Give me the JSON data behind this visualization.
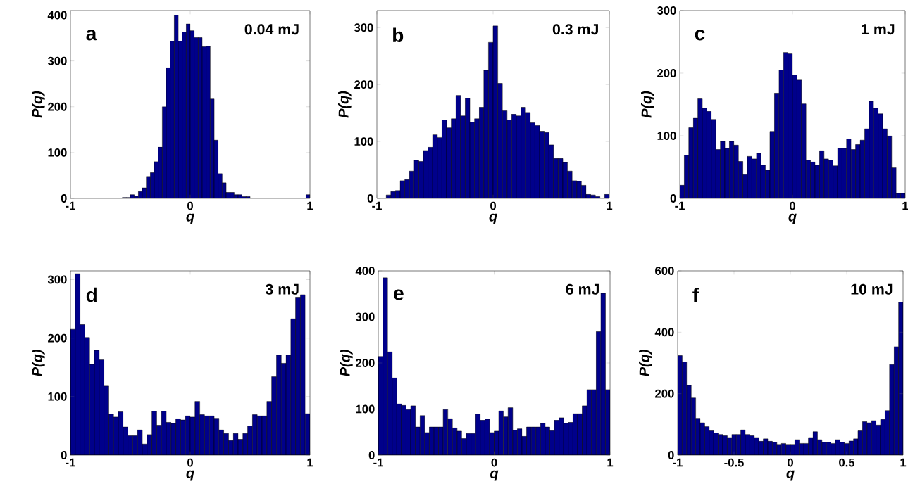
{
  "chart_data": [
    {
      "type": "histogram",
      "color": "#00008b",
      "xlabel": "q",
      "ylabel": "P(q)",
      "annotations": [
        "a",
        "0.04 mJ"
      ],
      "xlim": [
        -1,
        1
      ],
      "ylim": [
        0,
        410
      ],
      "xticks": [
        -1,
        0,
        1
      ],
      "yticks": [
        0,
        100,
        200,
        300,
        400
      ],
      "bins": [
        -1,
        -0.967,
        -0.933,
        -0.9,
        -0.867,
        -0.833,
        -0.8,
        -0.767,
        -0.733,
        -0.7,
        -0.667,
        -0.633,
        -0.6,
        -0.567,
        -0.533,
        -0.5,
        -0.467,
        -0.433,
        -0.4,
        -0.367,
        -0.333,
        -0.3,
        -0.267,
        -0.233,
        -0.2,
        -0.167,
        -0.133,
        -0.1,
        -0.067,
        -0.033,
        0,
        0.033,
        0.067,
        0.1,
        0.133,
        0.167,
        0.2,
        0.233,
        0.267,
        0.3,
        0.333,
        0.367,
        0.4,
        0.433,
        0.467,
        0.5,
        0.533,
        0.567,
        0.6,
        0.633,
        0.667,
        0.7,
        0.733,
        0.767,
        0.8,
        0.833,
        0.867,
        0.9,
        0.933,
        0.967,
        1
      ],
      "values": [
        0,
        0,
        0,
        0,
        0,
        0,
        0,
        0,
        0,
        0,
        0,
        0,
        0,
        2,
        2,
        8,
        5,
        15,
        23,
        48,
        56,
        80,
        112,
        200,
        285,
        343,
        400,
        343,
        363,
        381,
        366,
        351,
        351,
        331,
        332,
        217,
        127,
        54,
        34,
        13,
        13,
        8,
        8,
        4,
        4,
        0,
        0,
        0,
        0,
        0,
        0,
        0,
        0,
        0,
        0,
        0,
        0,
        0,
        0,
        8
      ]
    },
    {
      "type": "histogram",
      "color": "#00008b",
      "xlabel": "q",
      "ylabel": "P(q)",
      "annotations": [
        "b",
        "0.3 mJ"
      ],
      "xlim": [
        -1,
        1
      ],
      "ylim": [
        0,
        330
      ],
      "xticks": [
        -1,
        0,
        1
      ],
      "yticks": [
        0,
        100,
        200,
        300
      ],
      "bins": [
        -1,
        -0.96,
        -0.92,
        -0.88,
        -0.84,
        -0.8,
        -0.76,
        -0.72,
        -0.68,
        -0.64,
        -0.6,
        -0.56,
        -0.52,
        -0.48,
        -0.44,
        -0.4,
        -0.36,
        -0.32,
        -0.28,
        -0.24,
        -0.2,
        -0.16,
        -0.12,
        -0.08,
        -0.04,
        0,
        0.04,
        0.08,
        0.12,
        0.16,
        0.2,
        0.24,
        0.28,
        0.32,
        0.36,
        0.4,
        0.44,
        0.48,
        0.52,
        0.56,
        0.6,
        0.64,
        0.68,
        0.72,
        0.76,
        0.8,
        0.84,
        0.88,
        0.92,
        0.96,
        1
      ],
      "values": [
        0,
        0,
        6,
        12,
        14,
        31,
        33,
        48,
        67,
        65,
        84,
        90,
        112,
        107,
        138,
        124,
        140,
        181,
        145,
        176,
        134,
        140,
        160,
        225,
        274,
        303,
        202,
        154,
        138,
        148,
        145,
        160,
        151,
        133,
        128,
        118,
        116,
        94,
        70,
        70,
        63,
        48,
        31,
        30,
        23,
        7,
        6,
        3,
        0,
        7
      ]
    },
    {
      "type": "histogram",
      "color": "#00008b",
      "xlabel": "q",
      "ylabel": "P(q)",
      "annotations": [
        "c",
        "1 mJ"
      ],
      "xlim": [
        -1,
        1
      ],
      "ylim": [
        0,
        300
      ],
      "xticks": [
        -1,
        0,
        1
      ],
      "yticks": [
        0,
        100,
        200,
        300
      ],
      "bins": [
        -1,
        -0.96,
        -0.92,
        -0.88,
        -0.84,
        -0.8,
        -0.76,
        -0.72,
        -0.68,
        -0.64,
        -0.6,
        -0.56,
        -0.52,
        -0.48,
        -0.44,
        -0.4,
        -0.36,
        -0.32,
        -0.28,
        -0.24,
        -0.2,
        -0.16,
        -0.12,
        -0.08,
        -0.04,
        0,
        0.04,
        0.08,
        0.12,
        0.16,
        0.2,
        0.24,
        0.28,
        0.32,
        0.36,
        0.4,
        0.44,
        0.48,
        0.52,
        0.56,
        0.6,
        0.64,
        0.68,
        0.72,
        0.76,
        0.8,
        0.84,
        0.88,
        0.92,
        0.96,
        1
      ],
      "values": [
        21,
        69,
        113,
        128,
        159,
        144,
        139,
        126,
        78,
        91,
        80,
        91,
        85,
        59,
        38,
        67,
        63,
        72,
        53,
        45,
        107,
        168,
        205,
        233,
        231,
        197,
        189,
        151,
        61,
        58,
        53,
        76,
        63,
        61,
        52,
        80,
        80,
        95,
        78,
        86,
        93,
        111,
        155,
        144,
        135,
        111,
        100,
        49,
        8,
        8
      ]
    },
    {
      "type": "histogram",
      "color": "#00008b",
      "xlabel": "q",
      "ylabel": "P(q)",
      "annotations": [
        "d",
        "3 mJ"
      ],
      "xlim": [
        -1,
        1
      ],
      "ylim": [
        0,
        315
      ],
      "xticks": [
        -1,
        0,
        1
      ],
      "yticks": [
        0,
        100,
        200,
        300
      ],
      "bins": [
        -1,
        -0.96,
        -0.92,
        -0.88,
        -0.84,
        -0.8,
        -0.76,
        -0.72,
        -0.68,
        -0.64,
        -0.6,
        -0.56,
        -0.52,
        -0.48,
        -0.44,
        -0.4,
        -0.36,
        -0.32,
        -0.28,
        -0.24,
        -0.2,
        -0.16,
        -0.12,
        -0.08,
        -0.04,
        0,
        0.04,
        0.08,
        0.12,
        0.16,
        0.2,
        0.24,
        0.28,
        0.32,
        0.36,
        0.4,
        0.44,
        0.48,
        0.52,
        0.56,
        0.6,
        0.64,
        0.68,
        0.72,
        0.76,
        0.8,
        0.84,
        0.88,
        0.92,
        0.96,
        1
      ],
      "values": [
        215,
        310,
        223,
        201,
        155,
        179,
        163,
        118,
        70,
        65,
        74,
        48,
        33,
        33,
        43,
        19,
        35,
        75,
        51,
        75,
        56,
        54,
        62,
        60,
        67,
        65,
        92,
        69,
        67,
        67,
        63,
        43,
        37,
        25,
        37,
        27,
        37,
        50,
        69,
        67,
        67,
        92,
        134,
        171,
        157,
        171,
        233,
        270,
        274,
        71
      ]
    },
    {
      "type": "histogram",
      "color": "#00008b",
      "xlabel": "q",
      "ylabel": "P(q)",
      "annotations": [
        "e",
        "6 mJ"
      ],
      "xlim": [
        -1,
        1
      ],
      "ylim": [
        0,
        400
      ],
      "xticks": [
        -1,
        0,
        1
      ],
      "yticks": [
        0,
        100,
        200,
        300,
        400
      ],
      "bins": [
        -1,
        -0.96,
        -0.92,
        -0.88,
        -0.84,
        -0.8,
        -0.76,
        -0.72,
        -0.68,
        -0.64,
        -0.6,
        -0.56,
        -0.52,
        -0.48,
        -0.44,
        -0.4,
        -0.36,
        -0.32,
        -0.28,
        -0.24,
        -0.2,
        -0.16,
        -0.12,
        -0.08,
        -0.04,
        0,
        0.04,
        0.08,
        0.12,
        0.16,
        0.2,
        0.24,
        0.28,
        0.32,
        0.36,
        0.4,
        0.44,
        0.48,
        0.52,
        0.56,
        0.6,
        0.64,
        0.68,
        0.72,
        0.76,
        0.8,
        0.84,
        0.88,
        0.92,
        0.96,
        1
      ],
      "values": [
        214,
        385,
        224,
        168,
        111,
        108,
        99,
        107,
        61,
        86,
        49,
        61,
        61,
        61,
        99,
        79,
        59,
        52,
        36,
        47,
        47,
        89,
        76,
        78,
        49,
        52,
        96,
        83,
        103,
        54,
        57,
        41,
        61,
        61,
        61,
        69,
        61,
        53,
        76,
        81,
        69,
        71,
        90,
        90,
        107,
        142,
        142,
        268,
        351,
        142
      ]
    },
    {
      "type": "histogram",
      "color": "#00008b",
      "xlabel": "q",
      "ylabel": "P(q)",
      "annotations": [
        "f",
        "10 mJ"
      ],
      "xlim": [
        -1,
        1
      ],
      "ylim": [
        0,
        600
      ],
      "xticks": [
        -1,
        -0.5,
        0,
        0.5,
        1
      ],
      "yticks": [
        0,
        200,
        400,
        600
      ],
      "bins": [
        -1,
        -0.96,
        -0.92,
        -0.88,
        -0.84,
        -0.8,
        -0.76,
        -0.72,
        -0.68,
        -0.64,
        -0.6,
        -0.56,
        -0.52,
        -0.48,
        -0.44,
        -0.4,
        -0.36,
        -0.32,
        -0.28,
        -0.24,
        -0.2,
        -0.16,
        -0.12,
        -0.08,
        -0.04,
        0,
        0.04,
        0.08,
        0.12,
        0.16,
        0.2,
        0.24,
        0.28,
        0.32,
        0.36,
        0.4,
        0.44,
        0.48,
        0.52,
        0.56,
        0.6,
        0.64,
        0.68,
        0.72,
        0.76,
        0.8,
        0.84,
        0.88,
        0.92,
        0.96,
        1
      ],
      "values": [
        324,
        304,
        227,
        186,
        120,
        105,
        93,
        79,
        72,
        67,
        63,
        57,
        67,
        67,
        82,
        67,
        63,
        57,
        45,
        53,
        45,
        42,
        35,
        38,
        35,
        35,
        50,
        38,
        38,
        57,
        76,
        50,
        42,
        42,
        38,
        50,
        42,
        38,
        46,
        53,
        79,
        109,
        105,
        112,
        98,
        116,
        145,
        295,
        353,
        498
      ]
    }
  ]
}
